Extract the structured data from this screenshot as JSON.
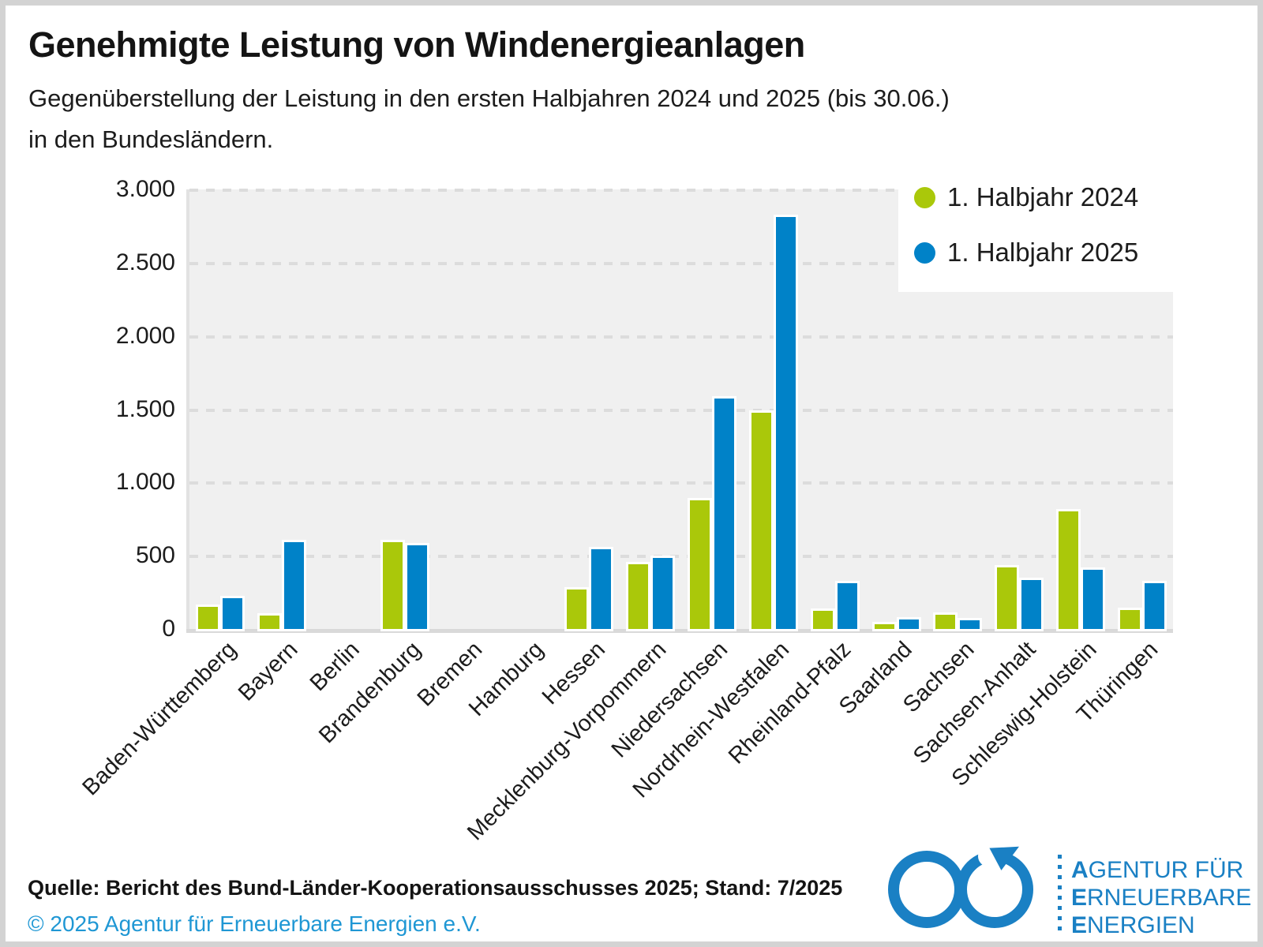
{
  "header": {
    "title": "Genehmigte Leistung von Windenergieanlagen",
    "subtitle_line1": "Gegenüberstellung der Leistung in den ersten Halbjahren 2024 und 2025 (bis 30.06.)",
    "subtitle_line2": "in den Bundesländern."
  },
  "chart_data": {
    "type": "bar",
    "title": "Genehmigte Leistung von Windenergieanlagen",
    "categories": [
      "Baden-Württemberg",
      "Bayern",
      "Berlin",
      "Brandenburg",
      "Bremen",
      "Hamburg",
      "Hessen",
      "Mecklenburg-Vorpommern",
      "Niedersachsen",
      "Nordrhein-Westfalen",
      "Rheinland-Pfalz",
      "Saarland",
      "Sachsen",
      "Sachsen-Anhalt",
      "Schleswig-Holstein",
      "Thüringen"
    ],
    "series": [
      {
        "name": "1. Halbjahr 2024",
        "color": "#aac80a",
        "values": [
          150,
          90,
          0,
          590,
          0,
          0,
          270,
          440,
          880,
          1475,
          125,
          30,
          95,
          420,
          800,
          130
        ]
      },
      {
        "name": "1. Halbjahr 2025",
        "color": "#0082c8",
        "values": [
          210,
          590,
          0,
          570,
          0,
          0,
          545,
          485,
          1575,
          2810,
          310,
          65,
          60,
          335,
          405,
          310
        ]
      }
    ],
    "ylim": [
      0,
      3000
    ],
    "yticks": [
      {
        "value": 0,
        "label": "0"
      },
      {
        "value": 500,
        "label": "500"
      },
      {
        "value": 1000,
        "label": "1.000"
      },
      {
        "value": 1500,
        "label": "1.500"
      },
      {
        "value": 2000,
        "label": "2.000"
      },
      {
        "value": 2500,
        "label": "2.500"
      },
      {
        "value": 3000,
        "label": "3.000"
      }
    ],
    "grid": "dashed-horizontal",
    "legend_position": "top-right",
    "plot_background": "#f0f0f0",
    "gridline_color": "#dcdcdc"
  },
  "footer": {
    "source": "Quelle: Bericht des Bund-Länder-Kooperationsausschusses 2025; Stand: 7/2025",
    "copyright": "© 2025 Agentur für Erneuerbare Energien e.V."
  },
  "logo": {
    "color": "#1a80c4",
    "lines": [
      {
        "first": "A",
        "rest": "GENTUR FÜR"
      },
      {
        "first": "E",
        "rest": "RNEUERBARE"
      },
      {
        "first": "E",
        "rest": "NERGIEN"
      }
    ]
  }
}
